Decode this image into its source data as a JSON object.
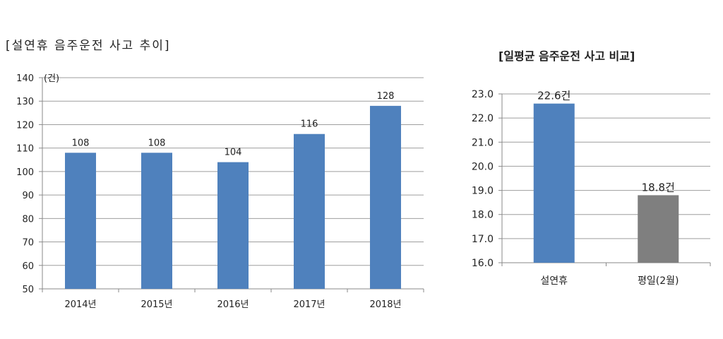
{
  "chart_data": [
    {
      "type": "bar",
      "title": "[설연휴 음주운전 사고 추이]",
      "ylabel": "(건)",
      "categories": [
        "2014년",
        "2015년",
        "2016년",
        "2017년",
        "2018년"
      ],
      "values": [
        108,
        108,
        104,
        116,
        128
      ],
      "data_labels": [
        "108",
        "108",
        "104",
        "116",
        "128"
      ],
      "ylim": [
        50,
        140
      ],
      "yticks": [
        "50",
        "60",
        "70",
        "80",
        "90",
        "100",
        "110",
        "120",
        "130",
        "140"
      ],
      "grid": true,
      "bar_color": "#4F81BD"
    },
    {
      "type": "bar",
      "title": "[일평균 음주운전 사고 비교]",
      "categories": [
        "설연휴",
        "평일(2월)"
      ],
      "values": [
        22.6,
        18.8
      ],
      "data_labels": [
        "22.6건",
        "18.8건"
      ],
      "ylim": [
        16.0,
        23.0
      ],
      "yticks": [
        "16.0",
        "17.0",
        "18.0",
        "19.0",
        "20.0",
        "21.0",
        "22.0",
        "23.0"
      ],
      "grid": true,
      "bar_colors": [
        "#4F81BD",
        "#7F7F7F"
      ]
    }
  ]
}
